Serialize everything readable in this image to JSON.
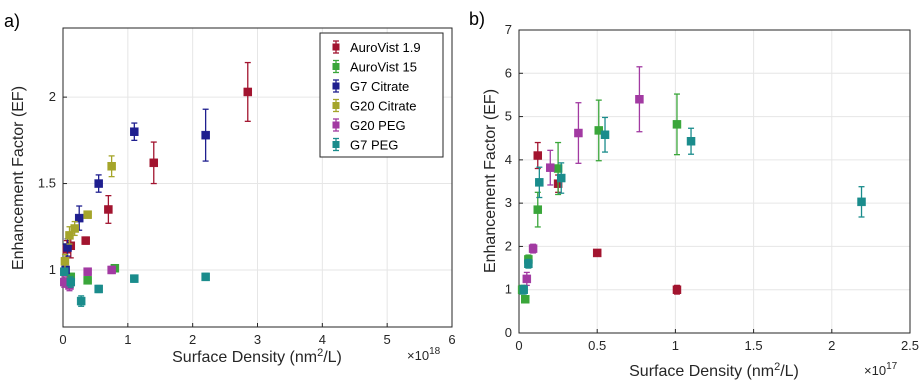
{
  "chart_data": [
    {
      "type": "scatter",
      "panel_label": "a)",
      "xlabel": "Surface Density (nm²/L)",
      "ylabel": "Enhancement Factor (EF)",
      "x_multiplier": "×10",
      "x_exponent": "18",
      "xlim": [
        0,
        6
      ],
      "ylim": [
        0.67,
        2.4
      ],
      "xticks": [
        0,
        1,
        2,
        3,
        4,
        5,
        6
      ],
      "yticks": [
        1,
        1.5,
        2
      ],
      "grid": true,
      "legend_position": "top-right",
      "series": [
        {
          "name": "AuroVist 1.9",
          "color": "#a2142f",
          "points": [
            [
              0.06,
              1.12,
              0.05
            ],
            [
              0.12,
              1.14,
              0.07
            ],
            [
              0.35,
              1.17,
              0.02
            ],
            [
              0.7,
              1.35,
              0.08
            ],
            [
              1.4,
              1.62,
              0.12
            ],
            [
              2.85,
              2.03,
              0.17
            ]
          ]
        },
        {
          "name": "AuroVist 15",
          "color": "#3aa63a",
          "points": [
            [
              0.04,
              0.93,
              0.02
            ],
            [
              0.12,
              0.96,
              0.02
            ],
            [
              0.38,
              0.94,
              0.02
            ],
            [
              0.8,
              1.01,
              0.02
            ]
          ]
        },
        {
          "name": "G7 Citrate",
          "color": "#1f1f8f",
          "points": [
            [
              0.04,
              1.0,
              0.02
            ],
            [
              0.07,
              1.13,
              0.05
            ],
            [
              0.25,
              1.3,
              0.07
            ],
            [
              0.55,
              1.5,
              0.05
            ],
            [
              1.1,
              1.8,
              0.05
            ],
            [
              2.2,
              1.78,
              0.15
            ]
          ]
        },
        {
          "name": "G20 Citrate",
          "color": "#a5a52a",
          "points": [
            [
              0.03,
              1.05,
              0.04
            ],
            [
              0.1,
              1.2,
              0.05
            ],
            [
              0.18,
              1.24,
              0.04
            ],
            [
              0.38,
              1.32,
              0.02
            ],
            [
              0.75,
              1.6,
              0.06
            ]
          ]
        },
        {
          "name": "G20 PEG",
          "color": "#a23aa2",
          "points": [
            [
              0.02,
              0.93,
              0.03
            ],
            [
              0.1,
              0.91,
              0.03
            ],
            [
              0.38,
              0.99,
              0.02
            ],
            [
              0.75,
              1.0,
              0.02
            ]
          ]
        },
        {
          "name": "G7 PEG",
          "color": "#1a8c8c",
          "points": [
            [
              0.02,
              0.99,
              0.02
            ],
            [
              0.12,
              0.93,
              0.03
            ],
            [
              0.28,
              0.82,
              0.03
            ],
            [
              0.55,
              0.89,
              0.02
            ],
            [
              1.1,
              0.95,
              0.02
            ],
            [
              2.2,
              0.96,
              0.02
            ]
          ]
        }
      ]
    },
    {
      "type": "scatter",
      "panel_label": "b)",
      "xlabel": "Surface Density (nm²/L)",
      "ylabel": "Enhancement Factor (EF)",
      "x_multiplier": "×10",
      "x_exponent": "17",
      "xlim": [
        0,
        2.5
      ],
      "ylim": [
        0,
        7
      ],
      "xticks": [
        0,
        0.5,
        1,
        1.5,
        2,
        2.5
      ],
      "yticks": [
        0,
        1,
        2,
        3,
        4,
        5,
        6,
        7
      ],
      "grid": true,
      "series": [
        {
          "name": "AuroVist 1.9",
          "color": "#a2142f",
          "points": [
            [
              0.12,
              4.1,
              0.3
            ],
            [
              0.25,
              3.45,
              0.2
            ],
            [
              0.5,
              1.85,
              0.05
            ],
            [
              1.01,
              1.0,
              0.1
            ]
          ]
        },
        {
          "name": "AuroVist 15",
          "color": "#3aa63a",
          "points": [
            [
              0.02,
              1.0,
              0.1
            ],
            [
              0.04,
              0.78,
              0.08
            ],
            [
              0.06,
              1.7,
              0.1
            ],
            [
              0.12,
              2.85,
              0.4
            ],
            [
              0.25,
              3.8,
              0.6
            ],
            [
              0.51,
              4.68,
              0.7
            ],
            [
              1.01,
              4.82,
              0.7
            ]
          ]
        },
        {
          "name": "G20 PEG",
          "color": "#a23aa2",
          "points": [
            [
              0.05,
              1.25,
              0.15
            ],
            [
              0.09,
              1.95,
              0.1
            ],
            [
              0.2,
              3.82,
              0.4
            ],
            [
              0.38,
              4.62,
              0.7
            ],
            [
              0.77,
              5.4,
              0.75
            ]
          ]
        },
        {
          "name": "G7 PEG",
          "color": "#1a8c8c",
          "points": [
            [
              0.03,
              1.0,
              0.1
            ],
            [
              0.06,
              1.6,
              0.1
            ],
            [
              0.13,
              3.48,
              0.35
            ],
            [
              0.27,
              3.58,
              0.35
            ],
            [
              0.55,
              4.58,
              0.4
            ],
            [
              1.1,
              4.43,
              0.3
            ],
            [
              2.19,
              3.03,
              0.35
            ]
          ]
        }
      ]
    }
  ]
}
